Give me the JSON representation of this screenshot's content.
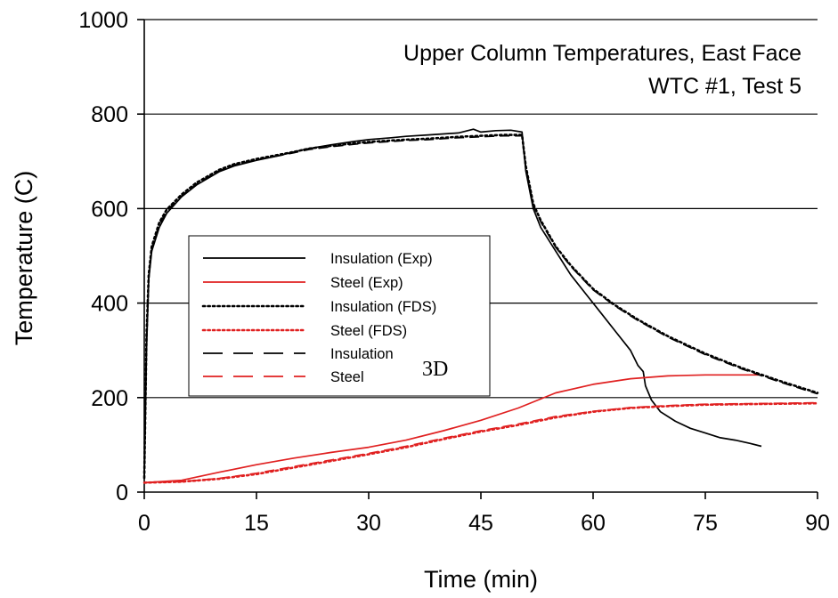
{
  "chart_data": {
    "type": "line",
    "title": "Upper Column Temperatures, East Face",
    "subtitle": "WTC #1, Test 5",
    "xlabel": "Time (min)",
    "ylabel": "Temperature (C)",
    "xlim": [
      0,
      90
    ],
    "ylim": [
      0,
      1000
    ],
    "xticks": [
      0,
      15,
      30,
      45,
      60,
      75,
      90
    ],
    "yticks": [
      0,
      200,
      400,
      600,
      800,
      1000
    ],
    "grid": "horizontal",
    "legend_position": "left-center",
    "annotation": "3D",
    "series": [
      {
        "name": "Insulation (Exp)",
        "color": "#000000",
        "dash": "solid",
        "x": [
          0,
          0.3,
          0.6,
          1,
          2,
          3,
          5,
          7,
          10,
          12,
          15,
          18,
          20,
          22,
          25,
          28,
          30,
          33,
          35,
          38,
          40,
          42,
          44,
          45,
          47,
          49,
          50.5,
          51,
          52,
          53,
          55,
          57,
          59,
          61,
          63,
          65,
          66,
          66.7,
          67,
          67.8,
          69,
          71,
          73,
          75,
          77,
          79,
          81,
          82.5
        ],
        "y": [
          30,
          300,
          450,
          510,
          560,
          590,
          625,
          650,
          678,
          690,
          702,
          712,
          720,
          727,
          735,
          742,
          746,
          750,
          753,
          756,
          758,
          760,
          768,
          762,
          765,
          766,
          762,
          680,
          600,
          560,
          510,
          460,
          420,
          380,
          340,
          300,
          268,
          255,
          225,
          195,
          170,
          150,
          135,
          125,
          115,
          110,
          103,
          97
        ]
      },
      {
        "name": "Steel (Exp)",
        "color": "#e02020",
        "dash": "solid",
        "x": [
          0,
          5,
          10,
          15,
          20,
          25,
          30,
          35,
          40,
          45,
          50,
          55,
          60,
          65,
          70,
          75,
          80,
          82.5
        ],
        "y": [
          20,
          25,
          42,
          58,
          72,
          84,
          95,
          110,
          130,
          152,
          178,
          210,
          228,
          240,
          246,
          248,
          248,
          248
        ]
      },
      {
        "name": "Insulation (FDS)",
        "color": "#000000",
        "dash": "dotted",
        "x": [
          0,
          0.3,
          0.6,
          1,
          2,
          3,
          5,
          7,
          10,
          12,
          15,
          18,
          20,
          22,
          25,
          28,
          30,
          33,
          35,
          38,
          40,
          42,
          45,
          48,
          50.5,
          51,
          52,
          53,
          55,
          57,
          60,
          63,
          66,
          70,
          75,
          80,
          85,
          90
        ],
        "y": [
          30,
          330,
          460,
          520,
          570,
          598,
          630,
          655,
          682,
          694,
          705,
          714,
          720,
          727,
          733,
          738,
          741,
          744,
          746,
          748,
          750,
          752,
          754,
          756,
          756,
          690,
          610,
          575,
          520,
          480,
          430,
          395,
          365,
          330,
          293,
          262,
          235,
          210
        ]
      },
      {
        "name": "Steel (FDS)",
        "color": "#e02020",
        "dash": "dotted",
        "x": [
          0,
          5,
          10,
          15,
          20,
          25,
          30,
          35,
          40,
          45,
          50,
          55,
          60,
          65,
          70,
          75,
          80,
          85,
          90
        ],
        "y": [
          20,
          22,
          28,
          38,
          52,
          66,
          80,
          95,
          112,
          128,
          142,
          158,
          170,
          178,
          182,
          185,
          186,
          187,
          188
        ]
      },
      {
        "name": "Insulation",
        "color": "#000000",
        "dash": "dashed",
        "x": [
          0,
          0.3,
          0.6,
          1,
          2,
          3,
          5,
          7,
          10,
          12,
          15,
          18,
          20,
          22,
          25,
          28,
          30,
          33,
          35,
          38,
          40,
          42,
          45,
          48,
          50.5,
          51,
          52,
          53,
          55,
          57,
          60,
          63,
          66,
          70,
          75,
          80,
          85,
          90
        ],
        "y": [
          30,
          325,
          455,
          515,
          566,
          595,
          627,
          652,
          680,
          692,
          703,
          712,
          718,
          725,
          731,
          736,
          739,
          742,
          744,
          746,
          748,
          750,
          752,
          754,
          754,
          688,
          608,
          572,
          518,
          478,
          428,
          393,
          363,
          328,
          291,
          260,
          233,
          208
        ]
      },
      {
        "name": "Steel",
        "color": "#e02020",
        "dash": "dashed",
        "x": [
          0,
          5,
          10,
          15,
          20,
          25,
          30,
          35,
          40,
          45,
          50,
          55,
          60,
          65,
          70,
          75,
          80,
          85,
          90
        ],
        "y": [
          20,
          22,
          29,
          40,
          54,
          68,
          82,
          97,
          114,
          130,
          144,
          160,
          171,
          179,
          183,
          186,
          187,
          188,
          189
        ]
      }
    ]
  }
}
